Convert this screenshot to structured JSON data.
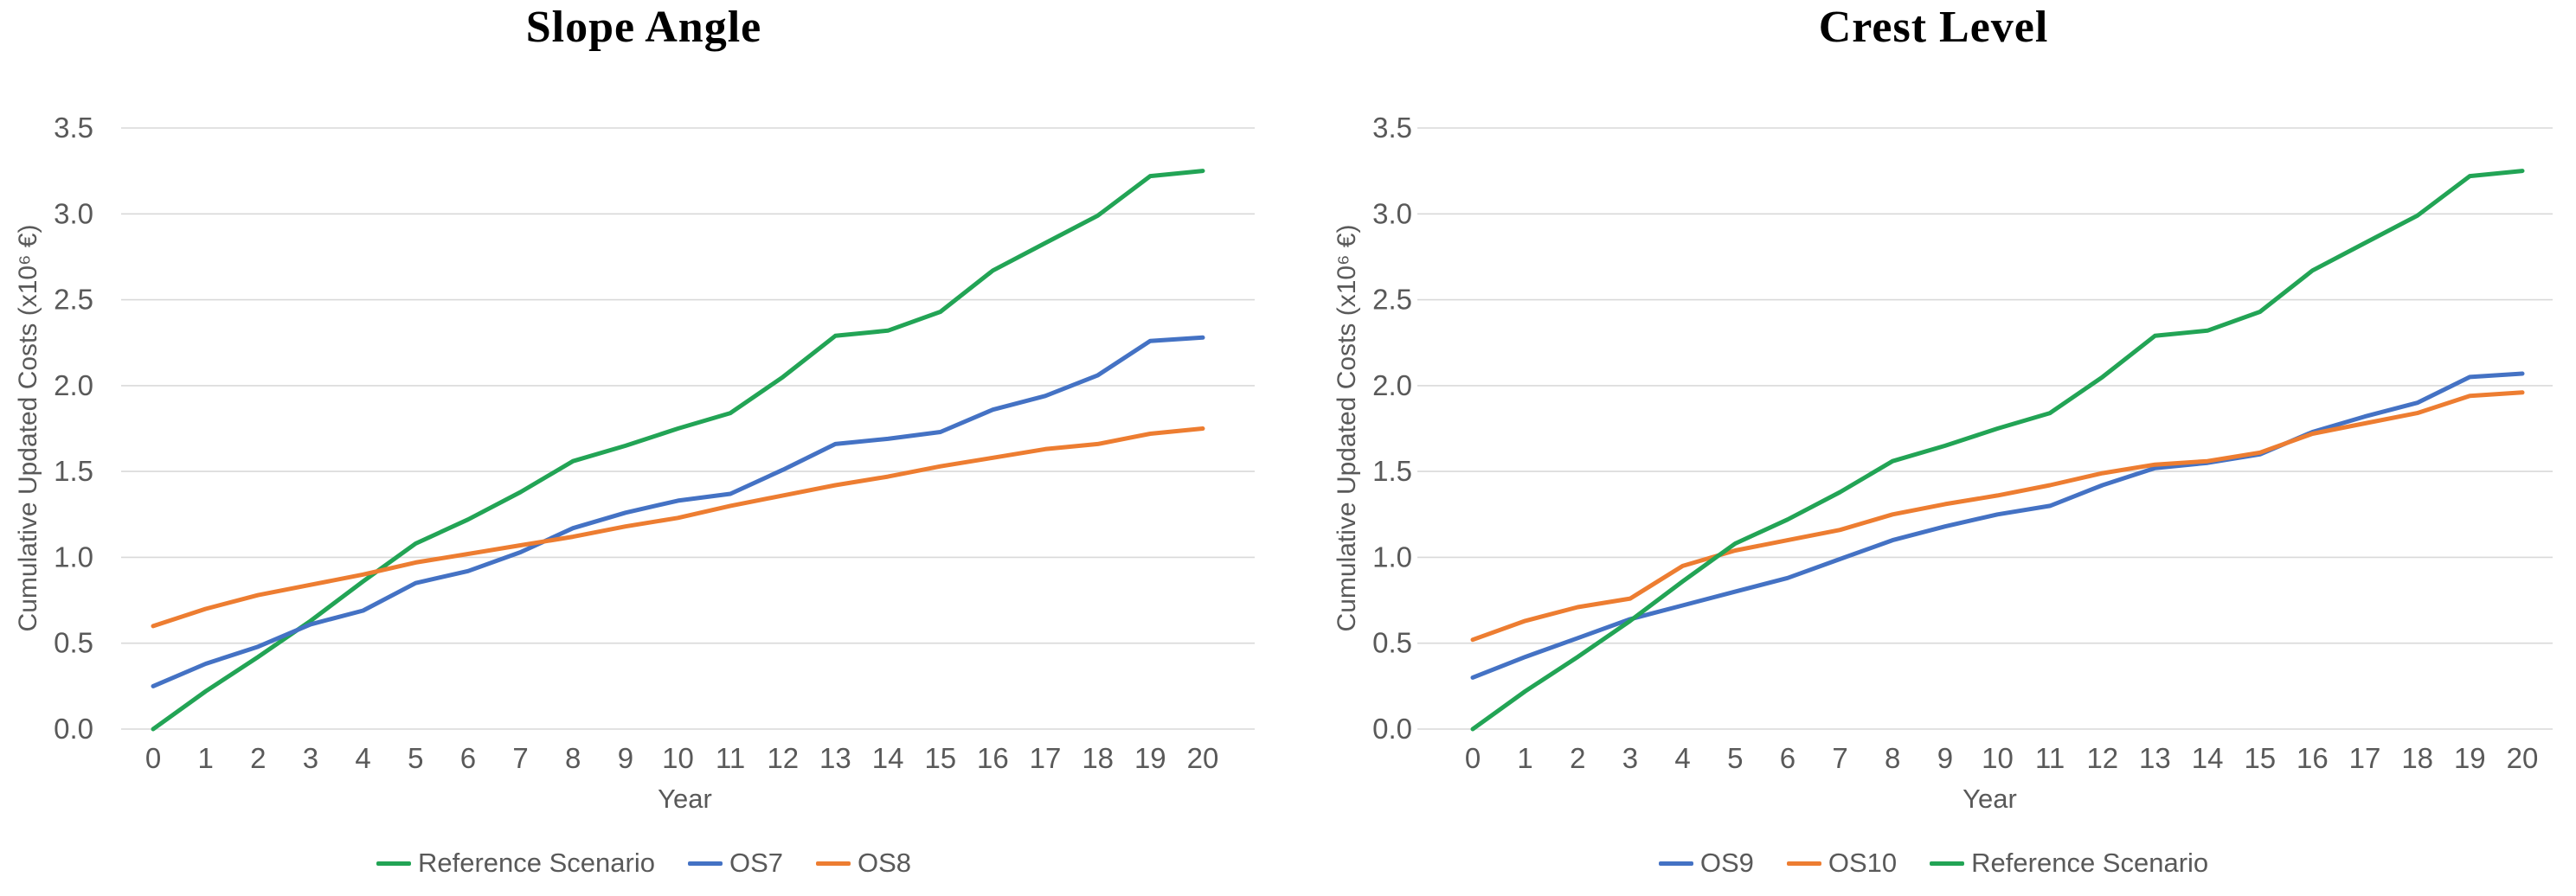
{
  "chart_data": [
    {
      "type": "line",
      "title": "Slope Angle",
      "xlabel": "Year",
      "ylabel": "Cumulative Updated Costs (x10⁶ €)",
      "x": [
        0,
        1,
        2,
        3,
        4,
        5,
        6,
        7,
        8,
        9,
        10,
        11,
        12,
        13,
        14,
        15,
        16,
        17,
        18,
        19,
        20
      ],
      "series": [
        {
          "name": "Reference Scenario",
          "color": "#22A455",
          "values": [
            0.0,
            0.22,
            0.42,
            0.63,
            0.86,
            1.08,
            1.22,
            1.38,
            1.56,
            1.65,
            1.75,
            1.84,
            2.05,
            2.29,
            2.32,
            2.43,
            2.67,
            2.83,
            2.99,
            3.22,
            3.25
          ]
        },
        {
          "name": "OS7",
          "color": "#4472C4",
          "values": [
            0.25,
            0.38,
            0.48,
            0.61,
            0.69,
            0.85,
            0.92,
            1.03,
            1.17,
            1.26,
            1.33,
            1.37,
            1.51,
            1.66,
            1.69,
            1.73,
            1.86,
            1.94,
            2.06,
            2.26,
            2.28
          ]
        },
        {
          "name": "OS8",
          "color": "#ED7D31",
          "values": [
            0.6,
            0.7,
            0.78,
            0.84,
            0.9,
            0.97,
            1.02,
            1.07,
            1.12,
            1.18,
            1.23,
            1.3,
            1.36,
            1.42,
            1.47,
            1.53,
            1.58,
            1.63,
            1.66,
            1.72,
            1.75
          ]
        }
      ],
      "ylim": [
        0.0,
        3.5
      ],
      "ytick_step": 0.5,
      "grid": true,
      "legend_position": "bottom",
      "legend_order": [
        "Reference Scenario",
        "OS7",
        "OS8"
      ],
      "text_color": "#595959",
      "grid_color": "#D9D9D9"
    },
    {
      "type": "line",
      "title": "Crest Level",
      "xlabel": "Year",
      "ylabel": "Cumulative Updated Costs (x10⁶ €)",
      "x": [
        0,
        1,
        2,
        3,
        4,
        5,
        6,
        7,
        8,
        9,
        10,
        11,
        12,
        13,
        14,
        15,
        16,
        17,
        18,
        19,
        20
      ],
      "series": [
        {
          "name": "OS9",
          "color": "#4472C4",
          "values": [
            0.3,
            0.42,
            0.53,
            0.64,
            0.72,
            0.8,
            0.88,
            0.99,
            1.1,
            1.18,
            1.25,
            1.3,
            1.42,
            1.52,
            1.55,
            1.6,
            1.73,
            1.82,
            1.9,
            2.05,
            2.07
          ]
        },
        {
          "name": "OS10",
          "color": "#ED7D31",
          "values": [
            0.52,
            0.63,
            0.71,
            0.76,
            0.95,
            1.04,
            1.1,
            1.16,
            1.25,
            1.31,
            1.36,
            1.42,
            1.49,
            1.54,
            1.56,
            1.61,
            1.72,
            1.78,
            1.84,
            1.94,
            1.96
          ]
        },
        {
          "name": "Reference Scenario",
          "color": "#22A455",
          "values": [
            0.0,
            0.22,
            0.42,
            0.63,
            0.86,
            1.08,
            1.22,
            1.38,
            1.56,
            1.65,
            1.75,
            1.84,
            2.05,
            2.29,
            2.32,
            2.43,
            2.67,
            2.83,
            2.99,
            3.22,
            3.25
          ]
        }
      ],
      "ylim": [
        0.0,
        3.5
      ],
      "ytick_step": 0.5,
      "grid": true,
      "legend_position": "bottom",
      "legend_order": [
        "OS9",
        "OS10",
        "Reference Scenario"
      ],
      "text_color": "#595959",
      "grid_color": "#D9D9D9"
    }
  ]
}
